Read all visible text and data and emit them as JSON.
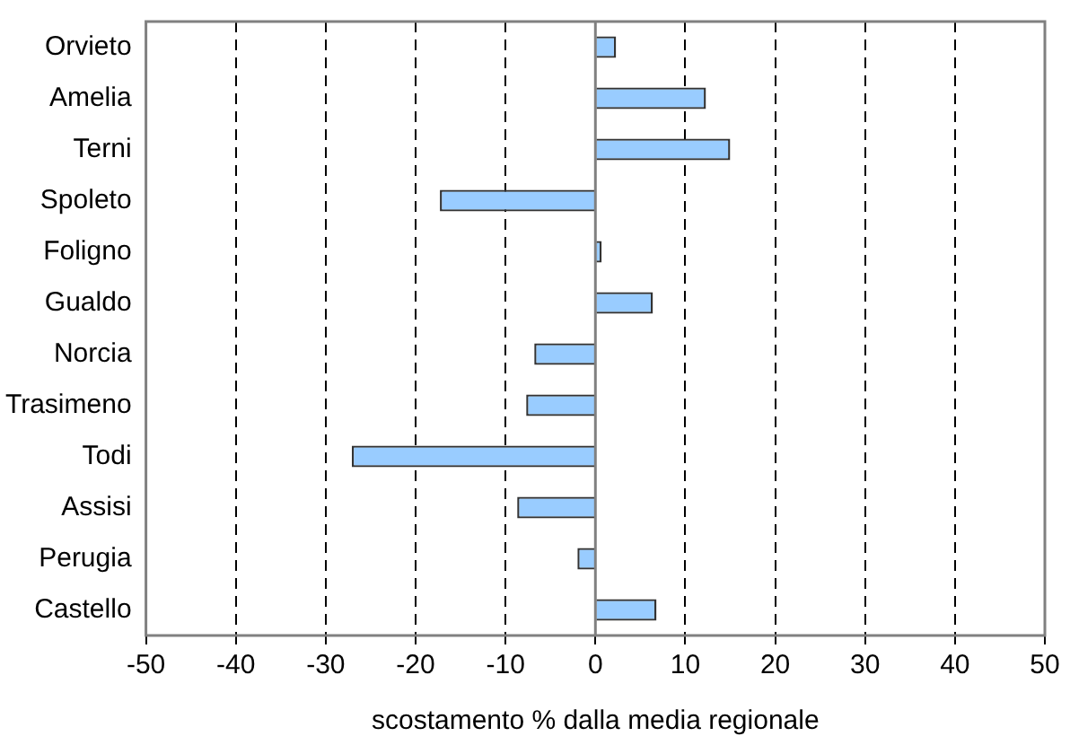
{
  "chart_data": {
    "type": "bar",
    "orientation": "horizontal",
    "xlabel": "scostamento % dalla media regionale",
    "categories": [
      "Orvieto",
      "Amelia",
      "Terni",
      "Spoleto",
      "Foligno",
      "Gualdo",
      "Norcia",
      "Trasimeno",
      "Todi",
      "Assisi",
      "Perugia",
      "Castello"
    ],
    "values": [
      2.3,
      12.3,
      15.0,
      -17.3,
      0.7,
      6.4,
      -6.8,
      -7.7,
      -27.1,
      -8.7,
      -2.0,
      6.8
    ],
    "color": "#99ccff",
    "xlim": [
      -50,
      50
    ],
    "xticks": [
      -50,
      -40,
      -30,
      -20,
      -10,
      0,
      10,
      20,
      30,
      40,
      50
    ],
    "grid": "x",
    "line_style": "dashed",
    "legend": false
  }
}
